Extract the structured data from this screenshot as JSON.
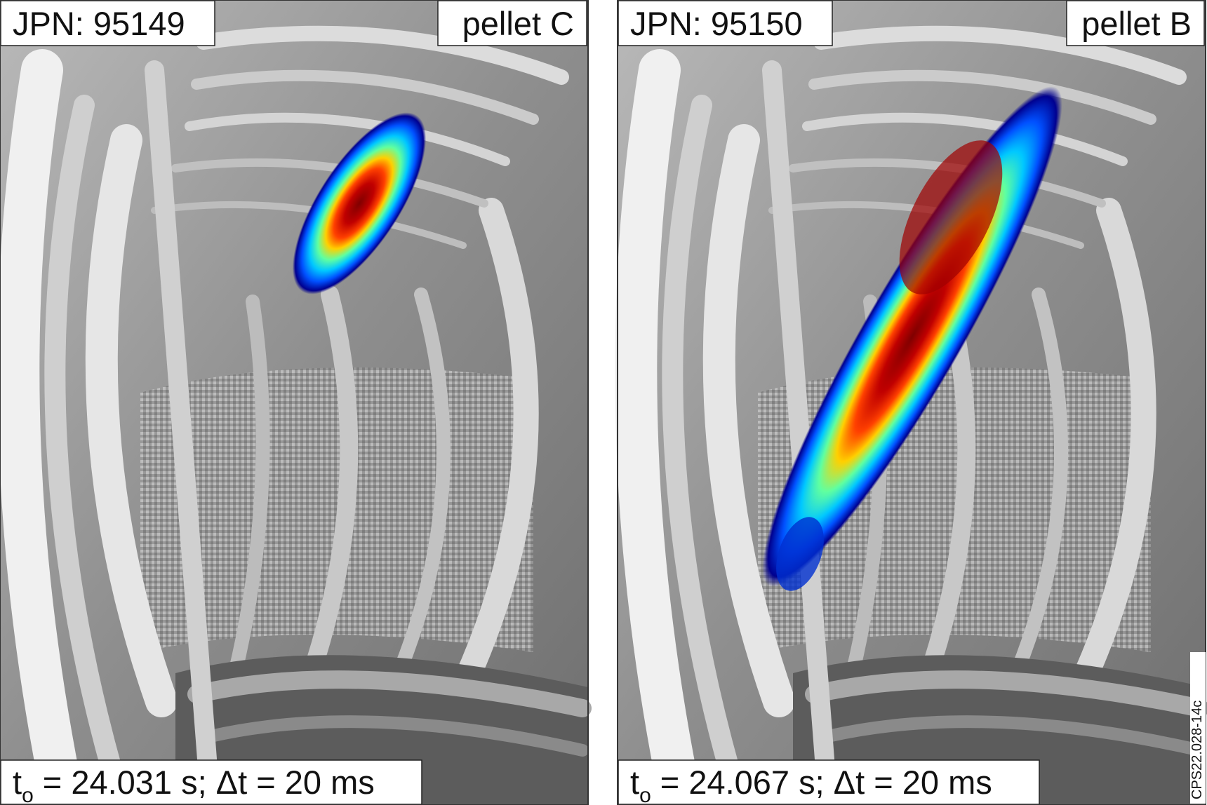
{
  "panels": [
    {
      "pulse": "JPN: 95149",
      "pellet": "pellet C",
      "time": {
        "t": "t",
        "sub": "o",
        "rest": " = 24.031 s; Δt = 20 ms"
      }
    },
    {
      "pulse": "JPN: 95150",
      "pellet": "pellet B",
      "time": {
        "t": "t",
        "sub": "o",
        "rest": " = 24.067 s; Δt = 20 ms"
      }
    }
  ],
  "figure_id": "CPS22.028-14c"
}
